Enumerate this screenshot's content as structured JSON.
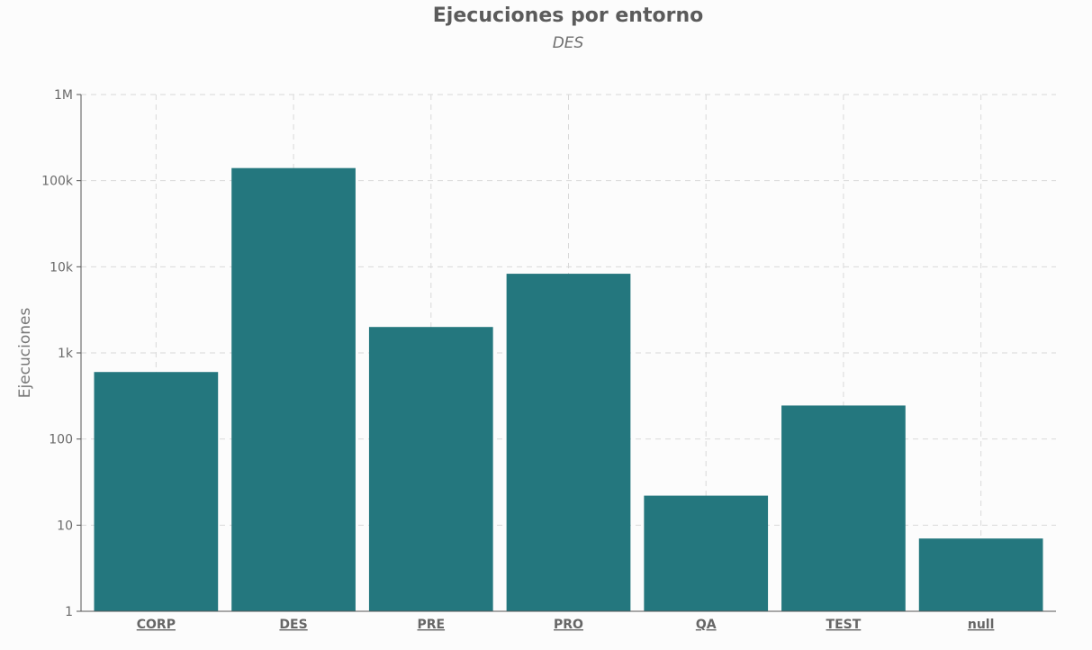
{
  "chart_data": {
    "type": "bar",
    "title": "Ejecuciones por entorno",
    "subtitle": "DES",
    "ylabel": "Ejecuciones",
    "xlabel": "",
    "yscale": "log",
    "ylim": [
      1,
      1000000
    ],
    "yticks": [
      1,
      10,
      100,
      1000,
      10000,
      100000,
      1000000
    ],
    "ytick_labels": [
      "1",
      "10",
      "100",
      "1k",
      "10k",
      "100k",
      "1M"
    ],
    "categories": [
      "CORP",
      "DES",
      "PRE",
      "PRO",
      "QA",
      "TEST",
      "null"
    ],
    "values": [
      600,
      140000,
      2000,
      8300,
      22,
      245,
      7
    ],
    "grid": true,
    "bar_color": "#24777e"
  }
}
